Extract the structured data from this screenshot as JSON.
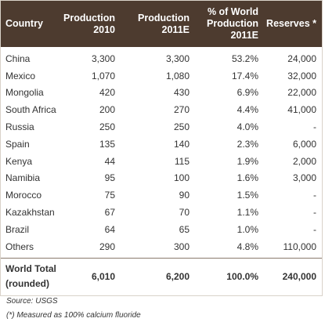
{
  "headers": [
    {
      "line1": "Country",
      "line2": ""
    },
    {
      "line1": "Production",
      "line2": "2010"
    },
    {
      "line1": "Production",
      "line2": "2011E"
    },
    {
      "line1": "% of World",
      "line2": "Production",
      "line3": "2011E"
    },
    {
      "line1": "Reserves *",
      "line2": ""
    }
  ],
  "rows": [
    {
      "country": "China",
      "p2010": "3,300",
      "p2011": "3,300",
      "pct": "53.2%",
      "reserves": "24,000"
    },
    {
      "country": "Mexico",
      "p2010": "1,070",
      "p2011": "1,080",
      "pct": "17.4%",
      "reserves": "32,000"
    },
    {
      "country": "Mongolia",
      "p2010": "420",
      "p2011": "430",
      "pct": "6.9%",
      "reserves": "22,000"
    },
    {
      "country": "South Africa",
      "p2010": "200",
      "p2011": "270",
      "pct": "4.4%",
      "reserves": "41,000"
    },
    {
      "country": "Russia",
      "p2010": "250",
      "p2011": "250",
      "pct": "4.0%",
      "reserves": "-"
    },
    {
      "country": "Spain",
      "p2010": "135",
      "p2011": "140",
      "pct": "2.3%",
      "reserves": "6,000"
    },
    {
      "country": "Kenya",
      "p2010": "44",
      "p2011": "115",
      "pct": "1.9%",
      "reserves": "2,000"
    },
    {
      "country": "Namibia",
      "p2010": "95",
      "p2011": "100",
      "pct": "1.6%",
      "reserves": "3,000"
    },
    {
      "country": "Morocco",
      "p2010": "75",
      "p2011": "90",
      "pct": "1.5%",
      "reserves": "-"
    },
    {
      "country": "Kazakhstan",
      "p2010": "67",
      "p2011": "70",
      "pct": "1.1%",
      "reserves": "-"
    },
    {
      "country": "Brazil",
      "p2010": "64",
      "p2011": "65",
      "pct": "1.0%",
      "reserves": "-"
    },
    {
      "country": "Others",
      "p2010": "290",
      "p2011": "300",
      "pct": "4.8%",
      "reserves": "110,000"
    }
  ],
  "total": {
    "label_line1": "World Total",
    "label_line2": "(rounded)",
    "p2010": "6,010",
    "p2011": "6,200",
    "pct": "100.0%",
    "reserves": "240,000"
  },
  "source": "Source: USGS",
  "footnote": "(*) Measured as 100% calcium fluoride",
  "colors": {
    "header_bg": "#4d3b2f",
    "header_text": "#ffffff",
    "body_text": "#333333"
  }
}
